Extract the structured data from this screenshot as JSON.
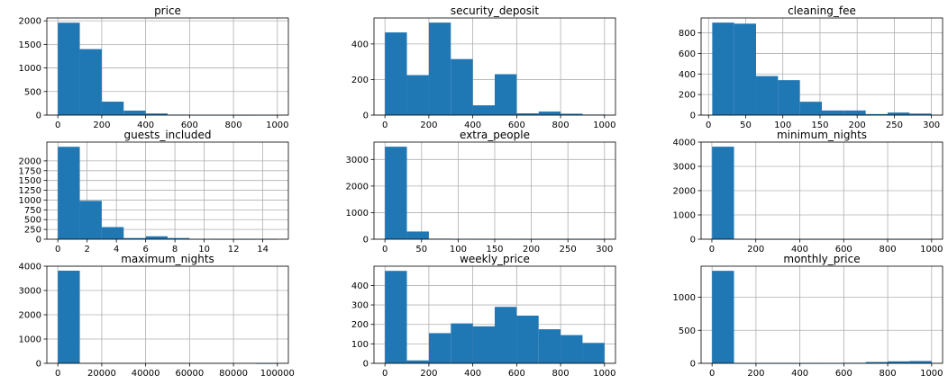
{
  "colors": {
    "bar": "#1f77b4",
    "grid": "#b0b0b0",
    "axes": "#000000"
  },
  "chart_data": [
    {
      "type": "bar",
      "title": "price",
      "bin_edges": [
        0,
        100,
        200,
        300,
        400,
        500,
        600,
        700,
        800,
        900,
        1000
      ],
      "values": [
        1960,
        1400,
        285,
        95,
        35,
        10,
        2,
        2,
        1,
        2
      ],
      "xlim": [
        -50,
        1050
      ],
      "xticks": [
        0,
        200,
        400,
        600,
        800,
        1000
      ],
      "ylim": [
        0,
        2060
      ],
      "yticks": [
        0,
        500,
        1000,
        1500,
        2000
      ],
      "grid": true
    },
    {
      "type": "bar",
      "title": "security_deposit",
      "bin_edges": [
        0,
        100,
        200,
        300,
        400,
        500,
        600,
        700,
        800,
        900,
        1000
      ],
      "values": [
        465,
        225,
        520,
        315,
        55,
        230,
        10,
        20,
        8,
        3
      ],
      "xlim": [
        -50,
        1050
      ],
      "xticks": [
        0,
        200,
        400,
        600,
        800,
        1000
      ],
      "ylim": [
        0,
        546
      ],
      "yticks": [
        0,
        200,
        400
      ],
      "grid": true
    },
    {
      "type": "bar",
      "title": "cleaning_fee",
      "bin_edges": [
        5,
        34.5,
        64,
        93.5,
        123,
        152.5,
        182,
        211.5,
        241,
        270.5,
        300
      ],
      "values": [
        900,
        890,
        380,
        340,
        130,
        45,
        45,
        10,
        25,
        15
      ],
      "xlim": [
        -10,
        315
      ],
      "xticks": [
        0,
        50,
        100,
        150,
        200,
        250,
        300
      ],
      "ylim": [
        0,
        945
      ],
      "yticks": [
        0,
        200,
        400,
        600,
        800
      ],
      "grid": true
    },
    {
      "type": "bar",
      "title": "guests_included",
      "bin_edges": [
        0,
        1.5,
        3,
        4.5,
        6,
        7.5,
        9,
        10.5,
        12,
        13.5,
        15
      ],
      "values": [
        2360,
        980,
        310,
        30,
        75,
        30,
        2,
        1,
        1,
        2
      ],
      "xlim": [
        -0.75,
        15.75
      ],
      "xticks": [
        0,
        2,
        4,
        6,
        8,
        10,
        12,
        14
      ],
      "ylim": [
        0,
        2480
      ],
      "yticks": [
        0,
        250,
        500,
        750,
        1000,
        1250,
        1500,
        1750,
        2000
      ],
      "grid": true
    },
    {
      "type": "bar",
      "title": "extra_people",
      "bin_edges": [
        0,
        30,
        60,
        90,
        120,
        150,
        180,
        210,
        240,
        270,
        300
      ],
      "values": [
        3480,
        290,
        20,
        4,
        2,
        2,
        1,
        1,
        1,
        1
      ],
      "xlim": [
        -15,
        315
      ],
      "xticks": [
        0,
        50,
        100,
        150,
        200,
        250,
        300
      ],
      "ylim": [
        0,
        3654
      ],
      "yticks": [
        0,
        1000,
        2000,
        3000
      ],
      "grid": true
    },
    {
      "type": "bar",
      "title": "minimum_nights",
      "bin_edges": [
        1,
        100.9,
        200.8,
        300.7,
        400.6,
        500.5,
        600.4,
        700.3,
        800.2,
        900.1,
        1000
      ],
      "values": [
        3810,
        3,
        1,
        1,
        1,
        1,
        1,
        1,
        1,
        1
      ],
      "xlim": [
        -49,
        1050
      ],
      "xticks": [
        0,
        200,
        400,
        600,
        800,
        1000
      ],
      "ylim": [
        0,
        4000
      ],
      "yticks": [
        0,
        1000,
        2000,
        3000,
        4000
      ],
      "grid": true
    },
    {
      "type": "bar",
      "title": "maximum_nights",
      "bin_edges": [
        1,
        10001,
        20001,
        30001,
        40001,
        50001,
        60001,
        70001,
        80001,
        90001,
        100001
      ],
      "values": [
        3815,
        0,
        0,
        0,
        0,
        0,
        0,
        0,
        0,
        1
      ],
      "xlim": [
        -5000,
        105001
      ],
      "xticks": [
        0,
        20000,
        40000,
        60000,
        80000,
        100000
      ],
      "ylim": [
        0,
        4000
      ],
      "yticks": [
        0,
        1000,
        2000,
        3000,
        4000
      ],
      "grid": true
    },
    {
      "type": "bar",
      "title": "weekly_price",
      "bin_edges": [
        0,
        100,
        200,
        300,
        400,
        500,
        600,
        700,
        800,
        900,
        1000
      ],
      "values": [
        475,
        15,
        155,
        205,
        190,
        290,
        245,
        175,
        145,
        105
      ],
      "xlim": [
        -50,
        1050
      ],
      "xticks": [
        0,
        200,
        400,
        600,
        800,
        1000
      ],
      "ylim": [
        0,
        499
      ],
      "yticks": [
        0,
        100,
        200,
        300,
        400
      ],
      "grid": true
    },
    {
      "type": "bar",
      "title": "monthly_price",
      "bin_edges": [
        0,
        100,
        200,
        300,
        400,
        500,
        600,
        700,
        800,
        900,
        1000
      ],
      "values": [
        1400,
        1,
        1,
        1,
        1,
        3,
        8,
        20,
        30,
        35
      ],
      "xlim": [
        -50,
        1050
      ],
      "xticks": [
        0,
        200,
        400,
        600,
        800,
        1000
      ],
      "ylim": [
        0,
        1470
      ],
      "yticks": [
        0,
        500,
        1000
      ],
      "grid": true
    }
  ]
}
